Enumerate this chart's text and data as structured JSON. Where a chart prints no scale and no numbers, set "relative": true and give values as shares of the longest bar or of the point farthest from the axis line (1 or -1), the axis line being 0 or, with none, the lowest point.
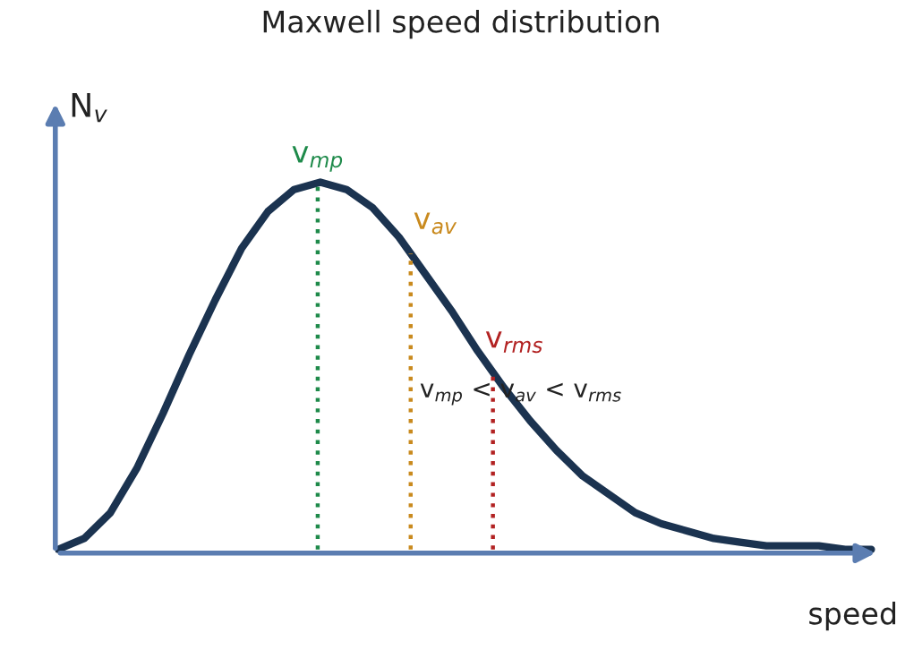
{
  "chart_data": {
    "type": "line",
    "title": "Maxwell speed distribution",
    "xlabel": "speed",
    "ylabel": "N$_{v}$",
    "relative": true,
    "grid": false,
    "legend": false,
    "categories": [
      null,
      null,
      null,
      null,
      null,
      null,
      null,
      null,
      null,
      null,
      null,
      null,
      null,
      null,
      null,
      null,
      null,
      null,
      null,
      null,
      null,
      null,
      null,
      null,
      null,
      null,
      null,
      null,
      null,
      null,
      null,
      null
    ],
    "series": [
      {
        "color": "#1b3350",
        "values": [
          0,
          0.03,
          0.1,
          0.22,
          0.37,
          0.53,
          0.68,
          0.82,
          0.92,
          0.98,
          1,
          0.98,
          0.93,
          0.85,
          0.75,
          0.65,
          0.54,
          0.44,
          0.35,
          0.27,
          0.2,
          0.15,
          0.1,
          0.07,
          0.05,
          0.03,
          0.02,
          0.01,
          0.01,
          0.01,
          0,
          0
        ]
      }
    ],
    "annotations": [
      "v$_{mp}$",
      "v$_{av}$",
      "v$_{rms}$",
      "v$_{mp}$ < v$_{av}$ < v$_{rms}$"
    ]
  }
}
